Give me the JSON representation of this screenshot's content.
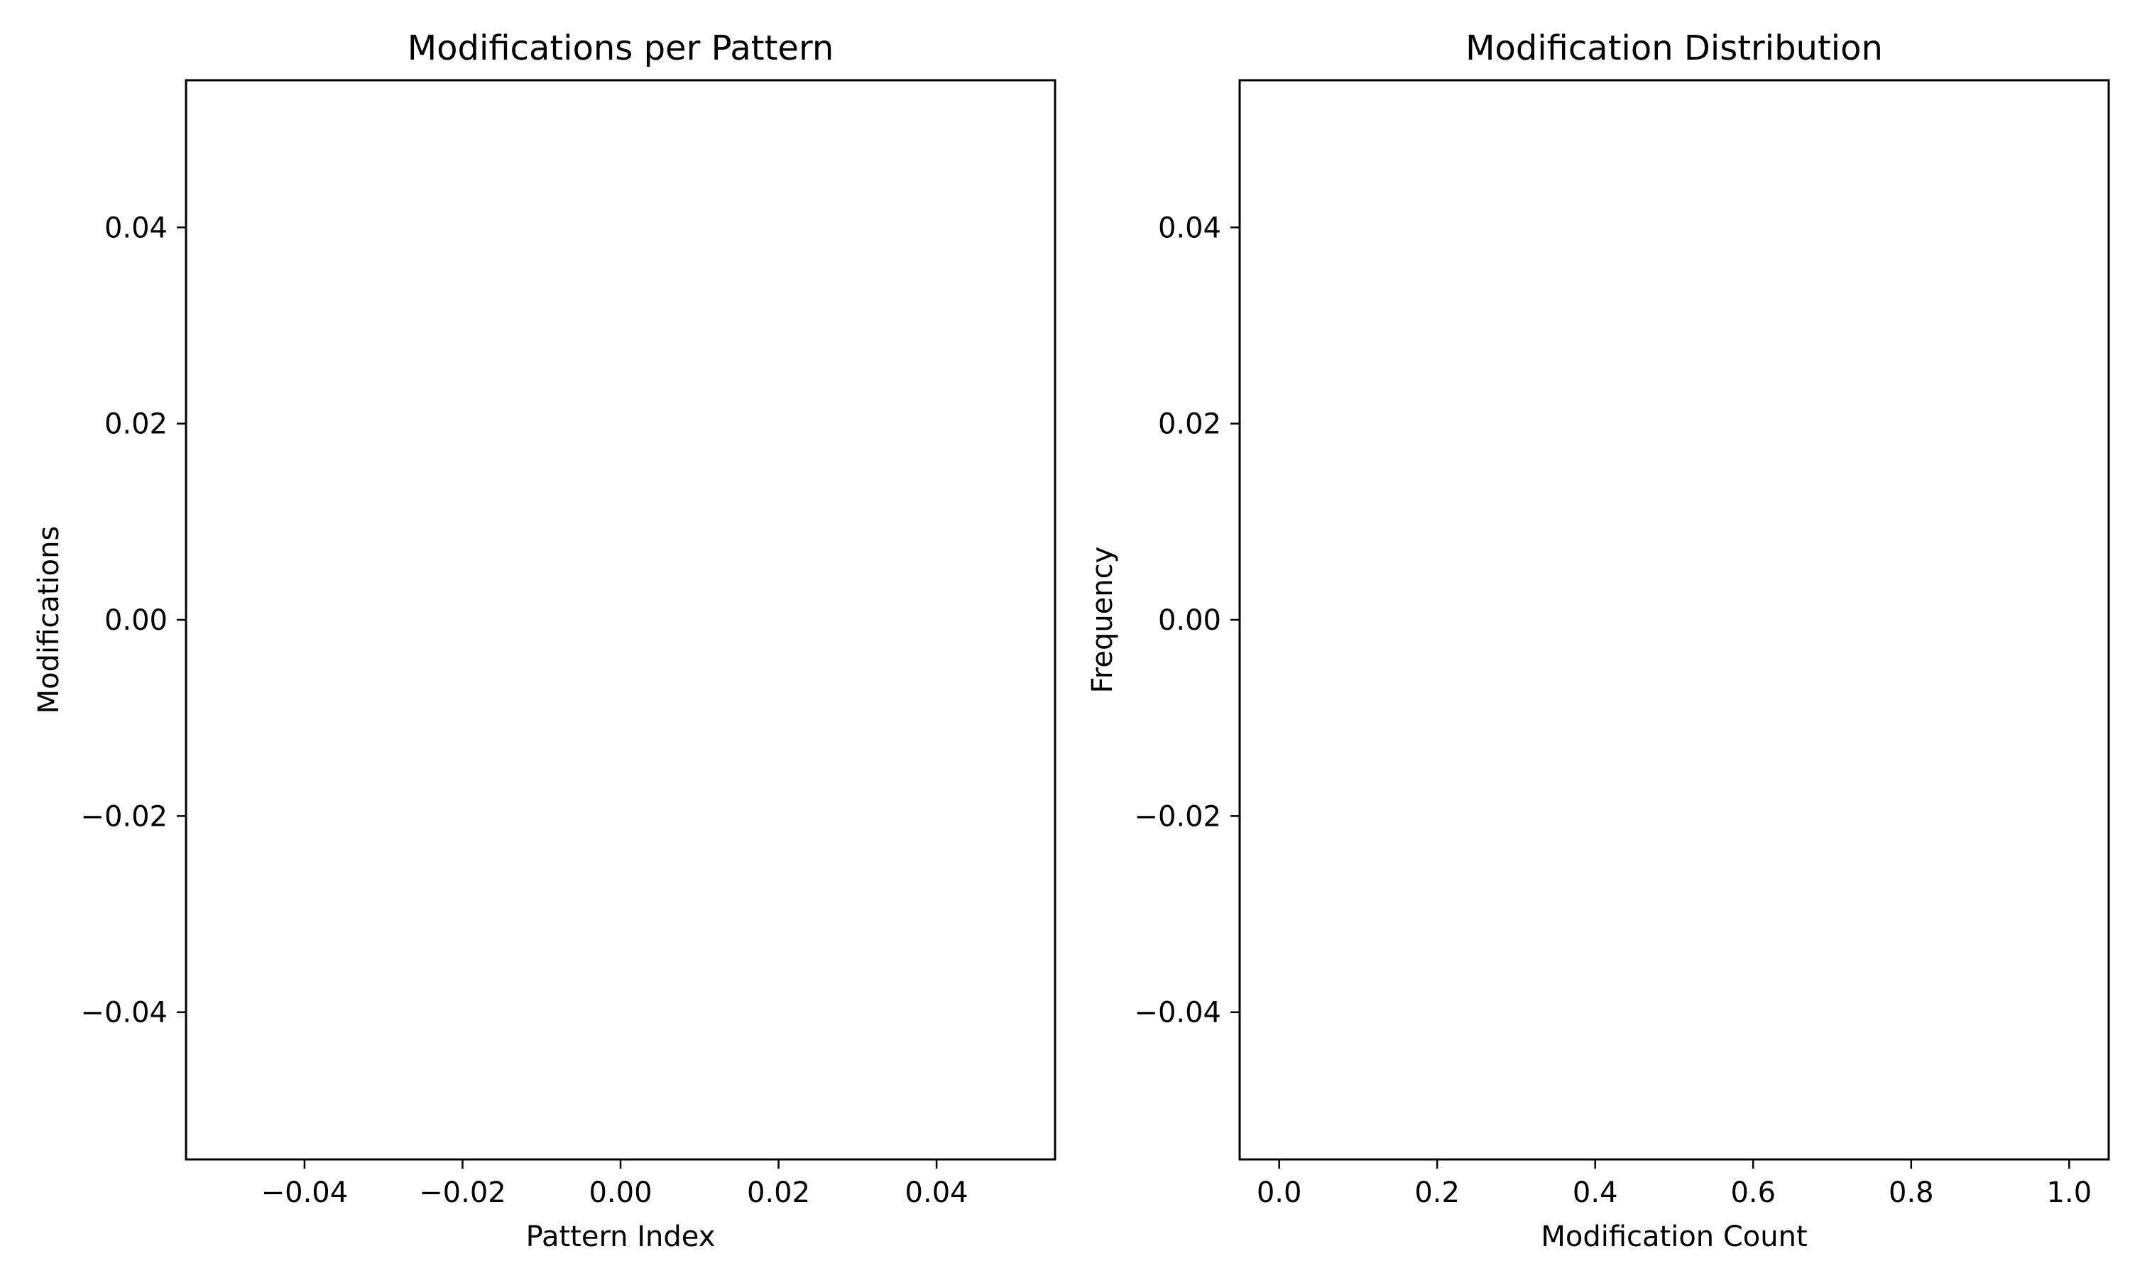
{
  "chart_data": [
    {
      "type": "bar",
      "title": "Modifications per Pattern",
      "xlabel": "Pattern Index",
      "ylabel": "Modifications",
      "x": [],
      "values": [],
      "xlim": [
        -0.055,
        0.055
      ],
      "ylim": [
        -0.055,
        0.055
      ],
      "xticks": [
        "−0.04",
        "−0.02",
        "0.00",
        "0.02",
        "0.04"
      ],
      "xtick_values": [
        -0.04,
        -0.02,
        0.0,
        0.02,
        0.04
      ],
      "yticks": [
        "−0.04",
        "−0.02",
        "0.00",
        "0.02",
        "0.04"
      ],
      "ytick_values": [
        -0.04,
        -0.02,
        0.0,
        0.02,
        0.04
      ],
      "grid": false,
      "legend": "none"
    },
    {
      "type": "bar",
      "title": "Modification Distribution",
      "xlabel": "Modification Count",
      "ylabel": "Frequency",
      "x": [],
      "values": [],
      "xlim": [
        -0.05,
        1.05
      ],
      "ylim": [
        -0.055,
        0.055
      ],
      "xticks": [
        "0.0",
        "0.2",
        "0.4",
        "0.6",
        "0.8",
        "1.0"
      ],
      "xtick_values": [
        0.0,
        0.2,
        0.4,
        0.6,
        0.8,
        1.0
      ],
      "yticks": [
        "−0.04",
        "−0.02",
        "0.00",
        "0.02",
        "0.04"
      ],
      "ytick_values": [
        -0.04,
        -0.02,
        0.0,
        0.02,
        0.04
      ],
      "grid": false,
      "legend": "none"
    }
  ]
}
